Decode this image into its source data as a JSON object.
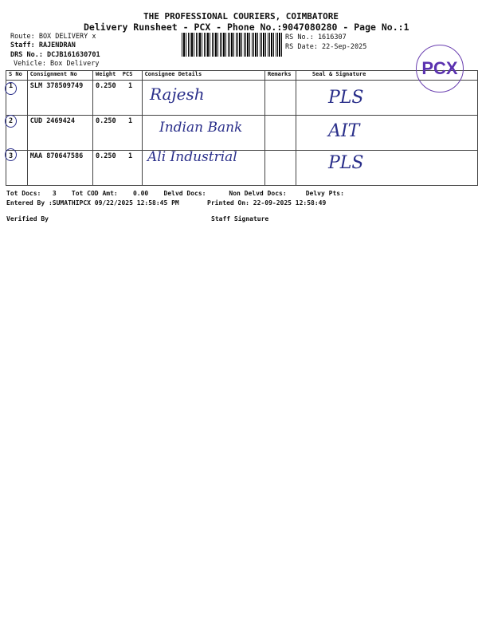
{
  "header": {
    "company": "THE PROFESSIONAL COURIERS, COIMBATORE",
    "subtitle": "Delivery Runsheet - PCX - Phone No.:9047080280 - Page No.:1",
    "route": "Route: BOX DELIVERY x",
    "staff": "Staff: RAJENDRAN",
    "drs_no": "DRS No.: DCJB161630701",
    "vehicle": "Vehicle: Box Delivery",
    "rs_no": "RS No.: 1616307",
    "rs_date": "RS Date: 22-Sep-2025"
  },
  "table": {
    "columns": [
      "S No",
      "Consignment No",
      "Weight",
      "PCS",
      "Consignee Details",
      "Remarks",
      "Seal & Signature"
    ],
    "rows": [
      {
        "sno": "1",
        "consignment": "SLM 378509749",
        "weight": "0.250",
        "pcs": "1",
        "consignee_hand": "Rajesh",
        "signature_hand": "PLS"
      },
      {
        "sno": "2",
        "consignment": "CUD 2469424",
        "weight": "0.250",
        "pcs": "1",
        "consignee_hand": "Indian Bank",
        "signature_hand": "AIT"
      },
      {
        "sno": "3",
        "consignment": "MAA 870647586",
        "weight": "0.250",
        "pcs": "1",
        "consignee_hand": "Ali Industrial",
        "signature_hand": "PLS"
      }
    ]
  },
  "stamp": {
    "text": "PCX",
    "color": "#5b32b0"
  },
  "footer": {
    "tot_docs_label": "Tot Docs:",
    "tot_docs": "3",
    "cod_label": "Tot COD Amt:",
    "cod": "0.00",
    "delvd": "Delvd Docs:",
    "non_delvd": "Non Delvd Docs:",
    "delvy_pts": "Delvy Pts:",
    "entered_by": "Entered By :SUMATHIPCX 09/22/2025 12:58:45 PM",
    "printed_on": "Printed On: 22-09-2025 12:58:49",
    "verified_by": "Verified By",
    "staff_signature": "Staff Signature"
  }
}
